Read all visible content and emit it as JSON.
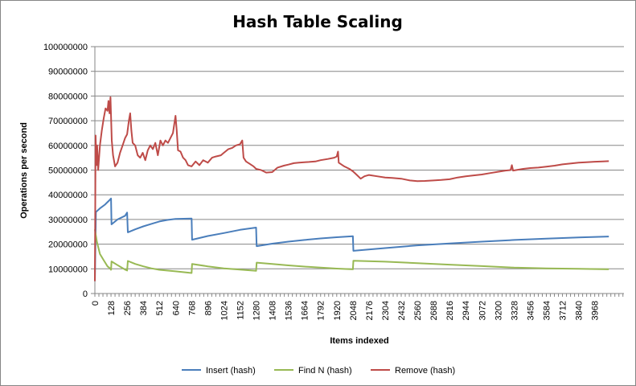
{
  "chart_data": {
    "type": "line",
    "title": "Hash Table Scaling",
    "xlabel": "Items indexed",
    "ylabel": "Operations per second",
    "ylim": [
      0,
      100000000
    ],
    "yticks": [
      "0",
      "10000000",
      "20000000",
      "30000000",
      "40000000",
      "50000000",
      "60000000",
      "70000000",
      "80000000",
      "90000000",
      "100000000"
    ],
    "xlim": [
      0,
      4200
    ],
    "xticks": [
      "0",
      "128",
      "256",
      "384",
      "512",
      "640",
      "768",
      "896",
      "1024",
      "1152",
      "1280",
      "1408",
      "1536",
      "1664",
      "1792",
      "1920",
      "2048",
      "2176",
      "2304",
      "2432",
      "2560",
      "2688",
      "2816",
      "2944",
      "3072",
      "3200",
      "3328",
      "3456",
      "3584",
      "3712",
      "3840",
      "3968"
    ],
    "grid": "horizontal",
    "legend": "bottom",
    "series": [
      {
        "name": "Insert (hash)",
        "color": "#4a7ebb",
        "points": [
          [
            0,
            5000000
          ],
          [
            8,
            33000000
          ],
          [
            40,
            34500000
          ],
          [
            80,
            36000000
          ],
          [
            110,
            37500000
          ],
          [
            128,
            38500000
          ],
          [
            132,
            28000000
          ],
          [
            180,
            30000000
          ],
          [
            240,
            31500000
          ],
          [
            256,
            32800000
          ],
          [
            262,
            24800000
          ],
          [
            320,
            26000000
          ],
          [
            384,
            27200000
          ],
          [
            448,
            28200000
          ],
          [
            512,
            29200000
          ],
          [
            576,
            29800000
          ],
          [
            640,
            30200000
          ],
          [
            768,
            30400000
          ],
          [
            772,
            21800000
          ],
          [
            896,
            23300000
          ],
          [
            1024,
            24500000
          ],
          [
            1152,
            25800000
          ],
          [
            1280,
            26700000
          ],
          [
            1284,
            19200000
          ],
          [
            1408,
            20200000
          ],
          [
            1536,
            21000000
          ],
          [
            1664,
            21700000
          ],
          [
            1792,
            22300000
          ],
          [
            1920,
            22800000
          ],
          [
            2048,
            23200000
          ],
          [
            2052,
            17300000
          ],
          [
            2304,
            18400000
          ],
          [
            2560,
            19500000
          ],
          [
            2816,
            20300000
          ],
          [
            3072,
            21000000
          ],
          [
            3328,
            21700000
          ],
          [
            3584,
            22200000
          ],
          [
            3840,
            22700000
          ],
          [
            4080,
            23100000
          ]
        ]
      },
      {
        "name": "Find N (hash)",
        "color": "#98b954",
        "points": [
          [
            0,
            26000000
          ],
          [
            16,
            21000000
          ],
          [
            40,
            16000000
          ],
          [
            70,
            13500000
          ],
          [
            100,
            11000000
          ],
          [
            120,
            10200000
          ],
          [
            128,
            9600000
          ],
          [
            132,
            13000000
          ],
          [
            180,
            11500000
          ],
          [
            240,
            9700000
          ],
          [
            256,
            9300000
          ],
          [
            262,
            13200000
          ],
          [
            320,
            12000000
          ],
          [
            384,
            11000000
          ],
          [
            448,
            10200000
          ],
          [
            512,
            9600000
          ],
          [
            640,
            9000000
          ],
          [
            768,
            8300000
          ],
          [
            772,
            12000000
          ],
          [
            896,
            11000000
          ],
          [
            1024,
            10200000
          ],
          [
            1152,
            9700000
          ],
          [
            1280,
            9200000
          ],
          [
            1284,
            12500000
          ],
          [
            1408,
            12000000
          ],
          [
            1536,
            11400000
          ],
          [
            1664,
            10900000
          ],
          [
            1792,
            10500000
          ],
          [
            1920,
            10100000
          ],
          [
            2048,
            9800000
          ],
          [
            2052,
            13300000
          ],
          [
            2304,
            12900000
          ],
          [
            2560,
            12300000
          ],
          [
            2816,
            11700000
          ],
          [
            3072,
            11100000
          ],
          [
            3328,
            10500000
          ],
          [
            3584,
            10200000
          ],
          [
            3840,
            10000000
          ],
          [
            4080,
            9800000
          ]
        ]
      },
      {
        "name": "Remove (hash)",
        "color": "#be4b48",
        "points": [
          [
            0,
            5000000
          ],
          [
            6,
            64000000
          ],
          [
            12,
            52000000
          ],
          [
            18,
            60000000
          ],
          [
            26,
            50000000
          ],
          [
            40,
            60000000
          ],
          [
            55,
            66000000
          ],
          [
            70,
            71000000
          ],
          [
            85,
            75000000
          ],
          [
            100,
            74000000
          ],
          [
            108,
            78000000
          ],
          [
            116,
            73000000
          ],
          [
            124,
            79500000
          ],
          [
            134,
            62000000
          ],
          [
            144,
            56000000
          ],
          [
            160,
            51500000
          ],
          [
            180,
            53000000
          ],
          [
            200,
            57000000
          ],
          [
            220,
            60000000
          ],
          [
            240,
            63000000
          ],
          [
            256,
            64500000
          ],
          [
            270,
            70000000
          ],
          [
            280,
            73000000
          ],
          [
            290,
            66000000
          ],
          [
            300,
            61000000
          ],
          [
            320,
            60000000
          ],
          [
            340,
            56000000
          ],
          [
            360,
            55000000
          ],
          [
            380,
            57000000
          ],
          [
            400,
            54000000
          ],
          [
            420,
            58000000
          ],
          [
            440,
            60000000
          ],
          [
            460,
            58500000
          ],
          [
            480,
            61000000
          ],
          [
            500,
            56000000
          ],
          [
            520,
            62000000
          ],
          [
            540,
            60000000
          ],
          [
            560,
            62000000
          ],
          [
            580,
            61000000
          ],
          [
            600,
            63000000
          ],
          [
            620,
            65000000
          ],
          [
            640,
            72000000
          ],
          [
            650,
            66000000
          ],
          [
            660,
            58000000
          ],
          [
            680,
            57500000
          ],
          [
            700,
            55000000
          ],
          [
            720,
            54000000
          ],
          [
            740,
            52000000
          ],
          [
            768,
            51500000
          ],
          [
            800,
            53500000
          ],
          [
            830,
            52000000
          ],
          [
            860,
            54000000
          ],
          [
            896,
            53000000
          ],
          [
            930,
            55000000
          ],
          [
            960,
            55500000
          ],
          [
            1000,
            56000000
          ],
          [
            1024,
            57000000
          ],
          [
            1060,
            58500000
          ],
          [
            1090,
            59000000
          ],
          [
            1120,
            60000000
          ],
          [
            1152,
            60500000
          ],
          [
            1170,
            62000000
          ],
          [
            1180,
            55000000
          ],
          [
            1200,
            53500000
          ],
          [
            1230,
            52500000
          ],
          [
            1260,
            51500000
          ],
          [
            1280,
            50500000
          ],
          [
            1320,
            50000000
          ],
          [
            1360,
            49000000
          ],
          [
            1408,
            49200000
          ],
          [
            1450,
            51000000
          ],
          [
            1500,
            51800000
          ],
          [
            1536,
            52200000
          ],
          [
            1580,
            52800000
          ],
          [
            1620,
            53000000
          ],
          [
            1664,
            53200000
          ],
          [
            1700,
            53300000
          ],
          [
            1750,
            53500000
          ],
          [
            1792,
            54000000
          ],
          [
            1850,
            54500000
          ],
          [
            1900,
            55000000
          ],
          [
            1920,
            55500000
          ],
          [
            1930,
            57500000
          ],
          [
            1936,
            53000000
          ],
          [
            1980,
            51500000
          ],
          [
            2020,
            50500000
          ],
          [
            2048,
            49500000
          ],
          [
            2080,
            48000000
          ],
          [
            2110,
            46500000
          ],
          [
            2140,
            47500000
          ],
          [
            2176,
            48000000
          ],
          [
            2240,
            47500000
          ],
          [
            2304,
            47000000
          ],
          [
            2360,
            46800000
          ],
          [
            2432,
            46500000
          ],
          [
            2500,
            45800000
          ],
          [
            2560,
            45500000
          ],
          [
            2620,
            45600000
          ],
          [
            2688,
            45800000
          ],
          [
            2750,
            46000000
          ],
          [
            2816,
            46300000
          ],
          [
            2880,
            47000000
          ],
          [
            2944,
            47500000
          ],
          [
            3000,
            47800000
          ],
          [
            3072,
            48200000
          ],
          [
            3140,
            48800000
          ],
          [
            3200,
            49300000
          ],
          [
            3260,
            49800000
          ],
          [
            3300,
            50000000
          ],
          [
            3310,
            52000000
          ],
          [
            3320,
            49800000
          ],
          [
            3400,
            50500000
          ],
          [
            3456,
            50800000
          ],
          [
            3520,
            51000000
          ],
          [
            3584,
            51400000
          ],
          [
            3650,
            51800000
          ],
          [
            3712,
            52300000
          ],
          [
            3780,
            52700000
          ],
          [
            3840,
            53000000
          ],
          [
            3900,
            53200000
          ],
          [
            3968,
            53400000
          ],
          [
            4030,
            53500000
          ],
          [
            4080,
            53600000
          ]
        ]
      }
    ]
  }
}
